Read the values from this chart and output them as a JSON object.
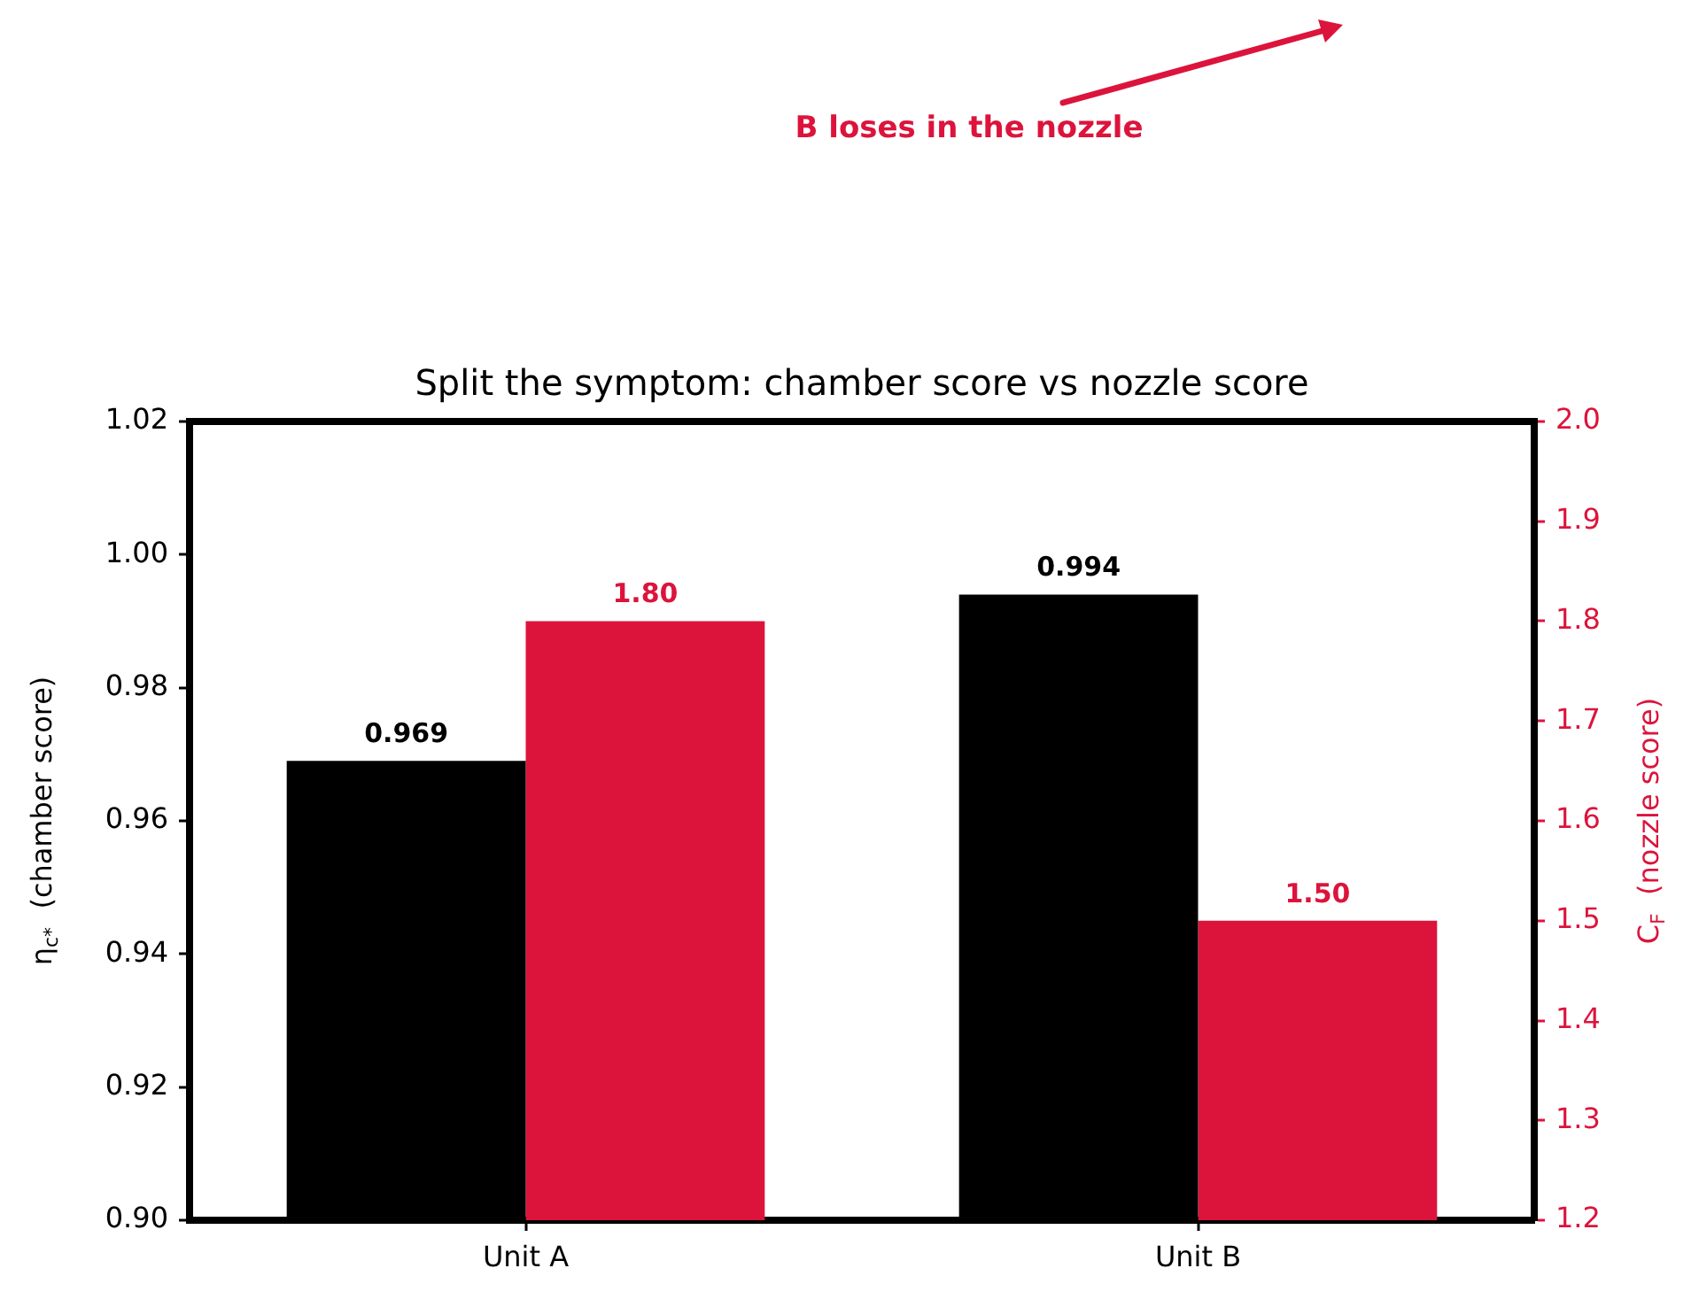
{
  "chart_data": {
    "type": "bar",
    "title": "Split the symptom: chamber score vs nozzle score",
    "ylabel": "η$_{c*}$  (chamber score)",
    "y2label": "C$_{F}$  (nozzle score)",
    "categories": [
      "Unit A",
      "Unit B"
    ],
    "series": [
      {
        "color": "#000000",
        "values": [
          0.969,
          0.994
        ],
        "value_labels": [
          "0.969",
          "0.994"
        ]
      },
      {
        "color": "#dc143c",
        "values": [
          1.8,
          1.5
        ],
        "value_labels": [
          "1.80",
          "1.50"
        ],
        "axis": "y2"
      }
    ],
    "ylim": [
      0.9,
      1.02
    ],
    "yticks": [
      {
        "value": 0.9,
        "label": "0.90"
      },
      0.92,
      0.94,
      0.96,
      0.98,
      {
        "value": 1.0,
        "label": "1.00"
      },
      1.02
    ],
    "y2lim": [
      1.2,
      2.0
    ],
    "y2ticks": [
      1.2,
      1.3,
      1.4,
      1.5,
      1.6,
      1.7,
      1.8,
      1.9,
      {
        "value": 2.0,
        "label": "2.0"
      }
    ],
    "annotations": [
      "B loses in the nozzle"
    ]
  }
}
